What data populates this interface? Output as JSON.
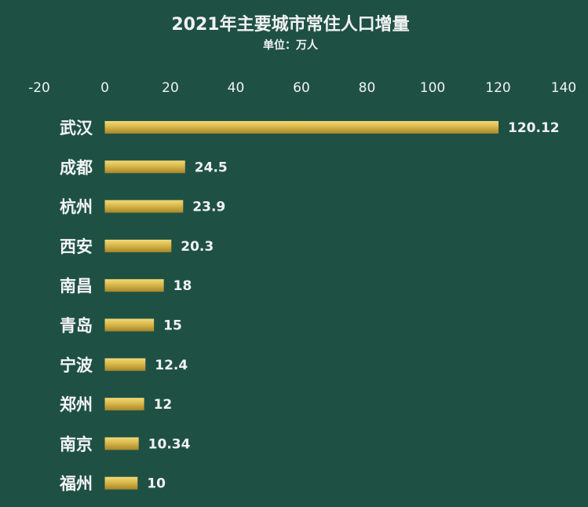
{
  "chart_data": {
    "type": "bar",
    "orientation": "horizontal",
    "title": "2021年主要城市常住人口增量",
    "subtitle": "单位：万人",
    "xlim": [
      -20,
      140
    ],
    "xticks": [
      -20,
      0,
      20,
      40,
      60,
      80,
      100,
      120,
      140
    ],
    "grid": false,
    "legend": "none",
    "categories": [
      "武汉",
      "成都",
      "杭州",
      "西安",
      "南昌",
      "青岛",
      "宁波",
      "郑州",
      "南京",
      "福州"
    ],
    "values": [
      120.12,
      24.5,
      23.9,
      20.3,
      18,
      15,
      12.4,
      12,
      10.34,
      10
    ],
    "data_labels": [
      "120.12",
      "24.5",
      "23.9",
      "20.3",
      "18",
      "15",
      "12.4",
      "12",
      "10.34",
      "10"
    ]
  },
  "colors": {
    "background": "#1e5144",
    "bar": "#d9b84a",
    "text": "#f2f2f2"
  }
}
